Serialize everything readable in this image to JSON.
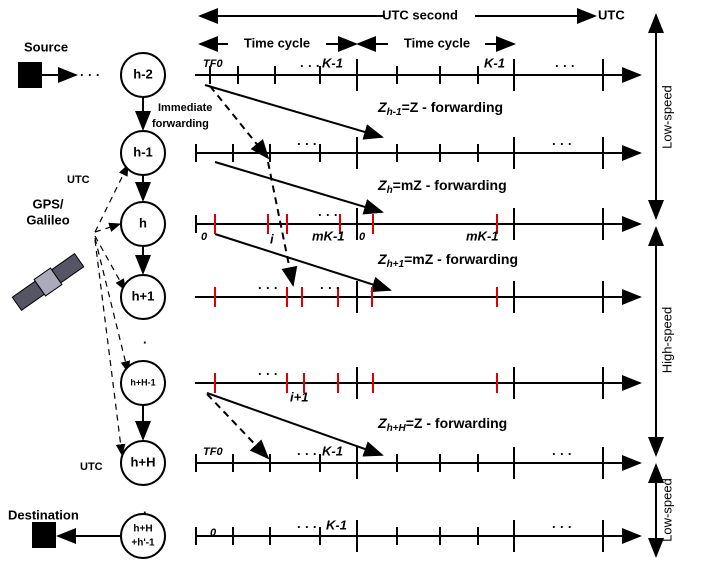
{
  "header": {
    "utc_second": "UTC second",
    "utc": "UTC",
    "time_cycle_1": "Time cycle",
    "time_cycle_2": "Time cycle"
  },
  "labels": {
    "source": "Source",
    "destination": "Destination",
    "gps": "GPS/",
    "galileo": "Galileo",
    "utc_top": "UTC",
    "utc_bottom": "UTC",
    "immediate": "Immediate",
    "forwarding": "forwarding",
    "dots": "· · ·",
    "vdot": "."
  },
  "nodes": [
    "h-2",
    "h-1",
    "h",
    "h+1",
    "h+H-1",
    "h+H",
    "h+H",
    "+h'-1"
  ],
  "marks": {
    "tf0_a": "TF0",
    "k1_a": "K-1",
    "k1_b": "K-1",
    "zero_a": "0",
    "mk1_a": "mK-1",
    "zero_b": "0",
    "i": "i",
    "mk1_b": "mK-1",
    "i1": "i+1",
    "tf0_b": "TF0",
    "k1_c": "K-1",
    "zero_c": "0",
    "k1_d": "K-1"
  },
  "forwarding": [
    {
      "main": "Z",
      "sub": "h-1",
      "rest": "=Z - forwarding"
    },
    {
      "main": "Z",
      "sub": "h",
      "rest": "=mZ - forwarding"
    },
    {
      "main": "Z",
      "sub": "h+1",
      "rest": "=mZ - forwarding"
    },
    {
      "main": "Z",
      "sub": "h+H",
      "rest": "=Z - forwarding"
    }
  ],
  "side": [
    "Low-speed",
    "High-speed",
    "Low-speed"
  ]
}
